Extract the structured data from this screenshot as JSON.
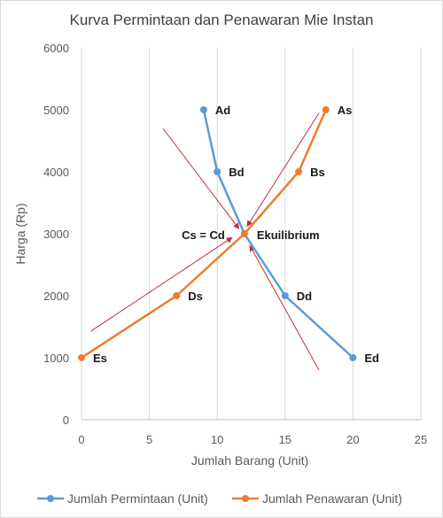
{
  "chart_data": {
    "type": "line",
    "title": "Kurva Permintaan dan Penawaran Mie Instan",
    "xlabel": "Jumlah Barang (Unit)",
    "ylabel": "Harga (Rp)",
    "xlim": [
      0,
      25
    ],
    "ylim": [
      0,
      6000
    ],
    "xticks": [
      0,
      5,
      10,
      15,
      20,
      25
    ],
    "yticks": [
      0,
      1000,
      2000,
      3000,
      4000,
      5000,
      6000
    ],
    "grid": "vertical",
    "legend_position": "bottom",
    "series": [
      {
        "name": "Jumlah Permintaan (Unit)",
        "color": "#5b9bd5",
        "points": [
          {
            "x": 9,
            "y": 5000,
            "label": "Ad"
          },
          {
            "x": 10,
            "y": 4000,
            "label": "Bd"
          },
          {
            "x": 12,
            "y": 3000,
            "label": ""
          },
          {
            "x": 15,
            "y": 2000,
            "label": "Dd"
          },
          {
            "x": 20,
            "y": 1000,
            "label": "Ed"
          }
        ]
      },
      {
        "name": "Jumlah Penawaran (Unit)",
        "color": "#ed7d31",
        "points": [
          {
            "x": 0,
            "y": 1000,
            "label": "Es"
          },
          {
            "x": 7,
            "y": 2000,
            "label": "Ds"
          },
          {
            "x": 12,
            "y": 3000,
            "label": ""
          },
          {
            "x": 16,
            "y": 4000,
            "label": "Bs"
          },
          {
            "x": 18,
            "y": 5000,
            "label": "As"
          }
        ]
      }
    ],
    "annotations": [
      {
        "text": "Cs = Cd",
        "x": 12,
        "y": 3000,
        "side": "left"
      },
      {
        "text": "Ekuilibrium",
        "x": 12,
        "y": 3000,
        "side": "right"
      }
    ],
    "arrow_color": "#c0303a",
    "arrows": [
      {
        "from": [
          6,
          4700
        ],
        "to": [
          11.6,
          3080
        ]
      },
      {
        "from": [
          17.5,
          4950
        ],
        "to": [
          12.2,
          3120
        ]
      },
      {
        "from": [
          17.5,
          800
        ],
        "to": [
          12.4,
          2810
        ]
      },
      {
        "from": [
          0.7,
          1430
        ],
        "to": [
          11.1,
          2940
        ]
      }
    ]
  }
}
